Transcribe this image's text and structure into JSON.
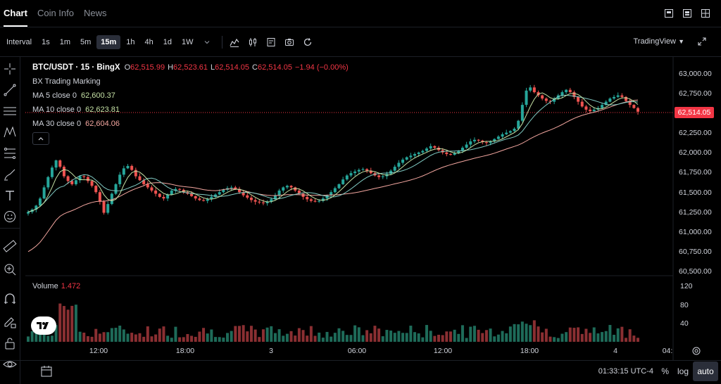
{
  "tabs": [
    {
      "label": "Chart"
    },
    {
      "label": "Coin Info"
    },
    {
      "label": "News"
    }
  ],
  "toolbar": {
    "interval_label": "Interval",
    "intervals": [
      "1s",
      "1m",
      "5m",
      "15m",
      "1h",
      "4h",
      "1d",
      "1W"
    ],
    "active_interval": "15m",
    "provider_label": "TradingView"
  },
  "legend": {
    "symbol": "BTC/USDT · 15 · BingX",
    "open_key": "O",
    "open": "62,515.99",
    "high_key": "H",
    "high": "62,523.61",
    "low_key": "L",
    "low": "62,514.05",
    "close_key": "C",
    "close": "62,514.05",
    "change": "−1.94 (−0.00%)",
    "marking": "BX Trading Marking",
    "ma": [
      {
        "label": "MA 5 close 0",
        "value": "62,600.37",
        "color": "#c5e1a5"
      },
      {
        "label": "MA 10 close 0",
        "value": "62,623.81",
        "color": "#c5e1a5"
      },
      {
        "label": "MA 30 close 0",
        "value": "62,604.06",
        "color": "#f4a7a0"
      }
    ]
  },
  "price_axis": [
    "63,000.00",
    "62,750.00",
    "62,500.00",
    "62,250.00",
    "62,000.00",
    "61,750.00",
    "61,500.00",
    "61,250.00",
    "61,000.00",
    "60,750.00",
    "60,500.00"
  ],
  "last_price": "62,514.05",
  "volume": {
    "label": "Volume",
    "value": "1.472",
    "axis": [
      "120",
      "80",
      "40"
    ]
  },
  "time_axis": [
    "12:00",
    "18:00",
    "3",
    "06:00",
    "12:00",
    "18:00",
    "4",
    "04:"
  ],
  "status": {
    "clock": "01:33:15 UTC-4",
    "percent": "%",
    "log": "log",
    "auto": "auto"
  },
  "colors": {
    "up": "#26a69a",
    "down": "#ef5350",
    "ma5": "#c5e1a5",
    "ma10": "#80cbc4",
    "ma30": "#f4a7a0",
    "last": "#f23645"
  },
  "chart_data": {
    "type": "candlestick",
    "price_range": [
      60500,
      63000
    ],
    "volume_range": [
      0,
      130
    ],
    "close_series": [
      61250,
      61280,
      61330,
      61420,
      61560,
      61690,
      61810,
      61900,
      61820,
      61700,
      61640,
      61600,
      61650,
      61700,
      61690,
      61640,
      61580,
      61500,
      61380,
      61240,
      61350,
      61480,
      61600,
      61720,
      61800,
      61830,
      61780,
      61700,
      61650,
      61600,
      61560,
      61520,
      61480,
      61440,
      61420,
      61470,
      61520,
      61540,
      61530,
      61500,
      61480,
      61450,
      61420,
      61400,
      61390,
      61410,
      61440,
      61470,
      61500,
      61530,
      61550,
      61560,
      61540,
      61500,
      61460,
      61430,
      61400,
      61380,
      61370,
      61360,
      61380,
      61410,
      61460,
      61520,
      61560,
      61580,
      61560,
      61520,
      61480,
      61440,
      61410,
      61390,
      61380,
      61390,
      61420,
      61460,
      61500,
      61550,
      61600,
      61660,
      61710,
      61740,
      61760,
      61780,
      61790,
      61770,
      61740,
      61710,
      61690,
      61700,
      61730,
      61770,
      61820,
      61870,
      61910,
      61940,
      61960,
      61980,
      62000,
      62020,
      62050,
      62080,
      62060,
      62030,
      62000,
      61980,
      61970,
      61990,
      62020,
      62060,
      62100,
      62140,
      62160,
      62150,
      62130,
      62120,
      62140,
      62170,
      62200,
      62230,
      62250,
      62270,
      62300,
      62400,
      62600,
      62780,
      62820,
      62760,
      62720,
      62680,
      62650,
      62640,
      62680,
      62720,
      62760,
      62790,
      62760,
      62700,
      62640,
      62580,
      62540,
      62520,
      62540,
      62560,
      62600,
      62640,
      62680,
      62700,
      62720,
      62700,
      62650,
      62600,
      62560,
      62514
    ]
  }
}
